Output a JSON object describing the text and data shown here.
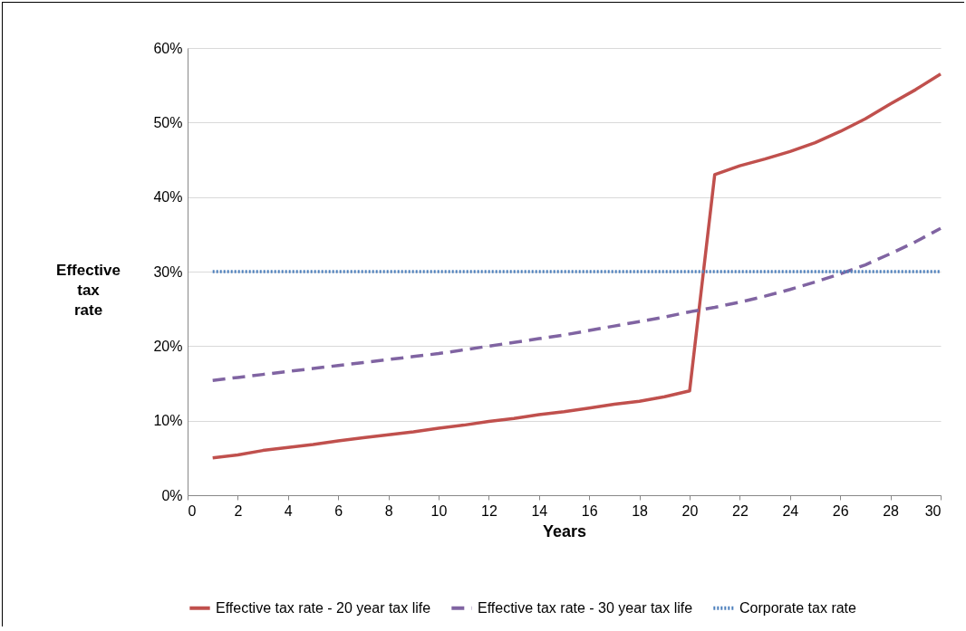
{
  "chart_data": {
    "type": "line",
    "xlabel": "Years",
    "ylabel": "Effective tax rate",
    "x": [
      1,
      2,
      3,
      4,
      5,
      6,
      7,
      8,
      9,
      10,
      11,
      12,
      13,
      14,
      15,
      16,
      17,
      18,
      19,
      20,
      21,
      22,
      23,
      24,
      25,
      26,
      27,
      28,
      29,
      30
    ],
    "series": [
      {
        "name": "Effective tax rate - 20 year tax life",
        "color": "#c0504d",
        "line_style": "solid",
        "values": [
          5.0,
          5.4,
          6.0,
          6.4,
          6.8,
          7.3,
          7.7,
          8.1,
          8.5,
          9.0,
          9.4,
          9.9,
          10.3,
          10.8,
          11.2,
          11.7,
          12.2,
          12.6,
          13.2,
          14.0,
          43.0,
          44.2,
          45.1,
          46.1,
          47.3,
          48.8,
          50.5,
          52.5,
          54.4,
          56.5
        ]
      },
      {
        "name": "Effective tax rate - 30 year tax life",
        "color": "#8064a2",
        "line_style": "dashed",
        "values": [
          15.4,
          15.8,
          16.2,
          16.6,
          17.0,
          17.4,
          17.8,
          18.2,
          18.6,
          19.0,
          19.5,
          20.0,
          20.5,
          21.0,
          21.5,
          22.1,
          22.7,
          23.3,
          23.9,
          24.6,
          25.2,
          25.9,
          26.7,
          27.6,
          28.6,
          29.7,
          30.9,
          32.4,
          34.0,
          35.8
        ]
      },
      {
        "name": "Corporate tax rate",
        "color": "#4f81bd",
        "line_style": "dotted",
        "values": [
          30,
          30,
          30,
          30,
          30,
          30,
          30,
          30,
          30,
          30,
          30,
          30,
          30,
          30,
          30,
          30,
          30,
          30,
          30,
          30,
          30,
          30,
          30,
          30,
          30,
          30,
          30,
          30,
          30,
          30
        ]
      }
    ],
    "xlim": [
      0,
      30
    ],
    "xticks": [
      0,
      2,
      4,
      6,
      8,
      10,
      12,
      14,
      16,
      18,
      20,
      22,
      24,
      26,
      28,
      30
    ],
    "ylim": [
      0,
      60
    ],
    "yticks": [
      {
        "value": 0,
        "label": "0%"
      },
      {
        "value": 10,
        "label": "10%"
      },
      {
        "value": 20,
        "label": "20%"
      },
      {
        "value": 30,
        "label": "30%"
      },
      {
        "value": 40,
        "label": "40%"
      },
      {
        "value": 50,
        "label": "50%"
      },
      {
        "value": 60,
        "label": "60%"
      }
    ],
    "grid": "y",
    "legend": "bottom",
    "marker": "none"
  }
}
